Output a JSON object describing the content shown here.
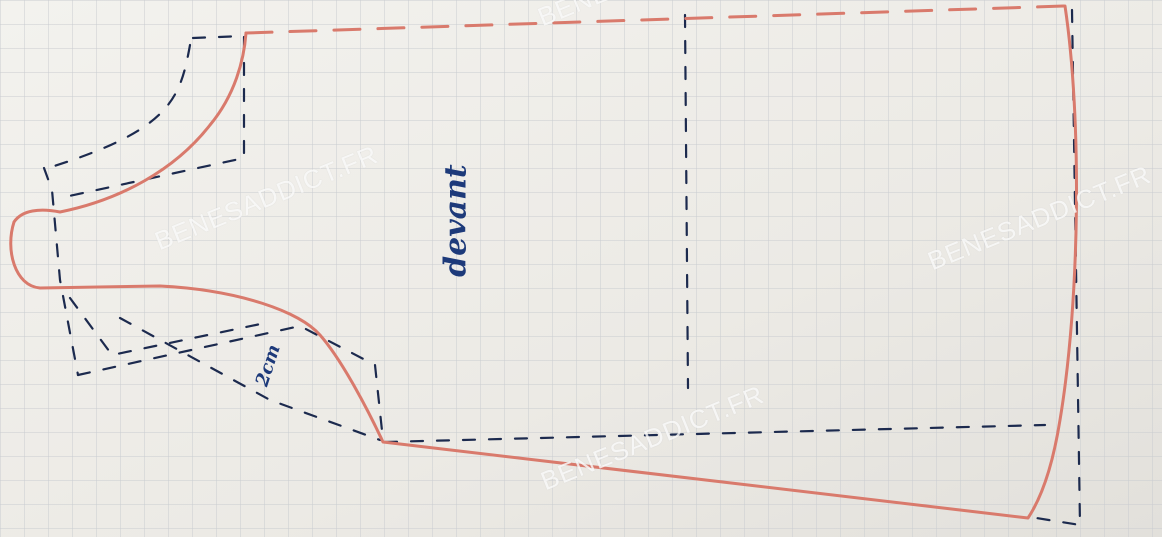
{
  "photo": {
    "subject": "hand-drawn sewing pattern piece on grid paper",
    "colors": {
      "paper": "#eeede9",
      "grid": "#c9ccd0",
      "pattern_outline": "#d97a6c",
      "dashed_lines": "#1c2a4e",
      "pencil_text": "#1d3a7a"
    }
  },
  "labels": {
    "piece_name": "devant",
    "measurement": "2cm"
  },
  "watermarks": [
    "BENESADDICT.FR",
    "BENESADDICT.FR",
    "BENESADDICT.FR",
    "BENES"
  ]
}
